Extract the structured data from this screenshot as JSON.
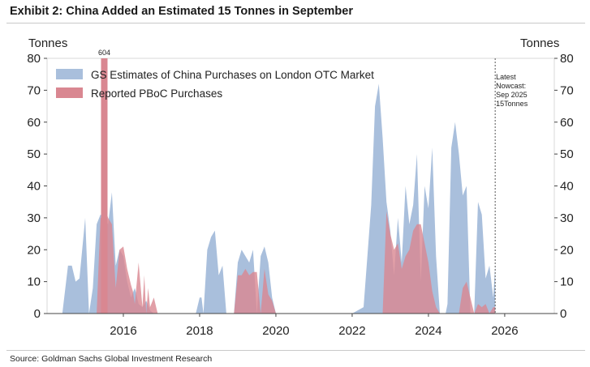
{
  "title": "Exhibit 2: China Added an Estimated 15 Tonnes in September",
  "source": "Source: Goldman Sachs Global Investment Research",
  "chart_data": {
    "type": "area",
    "ylabel_left": "Tonnes",
    "ylabel_right": "Tonnes",
    "ylim": [
      0,
      80
    ],
    "yticks": [
      0,
      10,
      20,
      30,
      40,
      50,
      60,
      70,
      80
    ],
    "xlim": [
      2014.0,
      2027.3
    ],
    "xticks": [
      2016,
      2018,
      2020,
      2022,
      2024,
      2026
    ],
    "colors": {
      "gs": "#a9bfdc",
      "pboc": "#d98791",
      "pboc_edge": "#c0505e"
    },
    "legend": {
      "placement": "top-left",
      "gs_label": "GS Estimates of China Purchases on London OTC Market",
      "pboc_label": "Reported PBoC Purchases"
    },
    "annotation": {
      "label": "604",
      "x": 2015.5,
      "note_lines": [
        "Latest",
        "Nowcast:",
        "Sep 2025",
        "15Tonnes"
      ],
      "note_x": 2025.75
    },
    "series": [
      {
        "name": "GS Estimates of China Purchases on London OTC Market",
        "x": [
          2014.4,
          2014.55,
          2014.65,
          2014.75,
          2014.85,
          2015.0,
          2015.1,
          2015.2,
          2015.3,
          2015.4,
          2015.5,
          2015.6,
          2015.7,
          2015.8,
          2015.9,
          2016.0,
          2016.1,
          2016.2,
          2016.3,
          2016.4,
          2016.5,
          2016.6,
          2016.7,
          2016.8,
          2016.9,
          2017.0,
          2017.5,
          2017.9,
          2018.0,
          2018.05,
          2018.1,
          2018.2,
          2018.3,
          2018.4,
          2018.5,
          2018.6,
          2018.7,
          2018.8,
          2018.9,
          2019.0,
          2019.1,
          2019.2,
          2019.3,
          2019.4,
          2019.5,
          2019.6,
          2019.7,
          2019.8,
          2019.9,
          2020.0,
          2020.1,
          2020.2,
          2020.5,
          2021.0,
          2021.5,
          2022.0,
          2022.3,
          2022.4,
          2022.5,
          2022.6,
          2022.7,
          2022.8,
          2022.9,
          2023.0,
          2023.1,
          2023.2,
          2023.3,
          2023.4,
          2023.5,
          2023.6,
          2023.7,
          2023.8,
          2023.9,
          2024.0,
          2024.1,
          2024.2,
          2024.3,
          2024.4,
          2024.45,
          2024.5,
          2024.6,
          2024.7,
          2024.8,
          2024.9,
          2025.0,
          2025.1,
          2025.2,
          2025.3,
          2025.4,
          2025.5,
          2025.6,
          2025.7,
          2025.75
        ],
        "values": [
          0,
          15,
          15,
          10,
          11,
          30,
          0,
          8,
          28,
          31,
          30,
          28,
          38,
          15,
          20,
          18,
          10,
          5,
          8,
          3,
          2,
          4,
          1,
          0,
          0,
          0,
          0,
          0,
          5,
          5,
          0,
          20,
          24,
          26,
          12,
          15,
          0,
          0,
          0,
          16,
          20,
          18,
          16,
          20,
          0,
          18,
          21,
          16,
          5,
          0,
          0,
          0,
          0,
          0,
          0,
          0,
          2,
          18,
          34,
          65,
          72,
          55,
          35,
          26,
          12,
          30,
          16,
          40,
          28,
          34,
          50,
          10,
          40,
          33,
          52,
          18,
          0,
          0,
          0,
          3,
          52,
          60,
          50,
          37,
          40,
          0,
          0,
          35,
          31,
          11,
          15,
          5,
          15
        ]
      },
      {
        "name": "Reported PBoC Purchases",
        "x": [
          2015.0,
          2015.3,
          2015.4,
          2015.45,
          2015.5,
          2015.55,
          2015.6,
          2015.7,
          2015.8,
          2015.9,
          2016.0,
          2016.1,
          2016.2,
          2016.25,
          2016.3,
          2016.4,
          2016.5,
          2016.55,
          2016.6,
          2016.65,
          2016.7,
          2016.8,
          2016.9,
          2017.0,
          2018.9,
          2019.0,
          2019.1,
          2019.2,
          2019.3,
          2019.4,
          2019.5,
          2019.6,
          2019.7,
          2019.8,
          2019.9,
          2020.0,
          2022.7,
          2022.75,
          2022.8,
          2022.9,
          2023.0,
          2023.1,
          2023.2,
          2023.3,
          2023.4,
          2023.5,
          2023.6,
          2023.7,
          2023.8,
          2023.9,
          2024.0,
          2024.1,
          2024.2,
          2024.3,
          2024.4,
          2024.45,
          2024.7,
          2024.8,
          2024.9,
          2025.0,
          2025.1,
          2025.2,
          2025.3,
          2025.4,
          2025.5,
          2025.6,
          2025.7,
          2025.75
        ],
        "values": [
          0,
          0,
          30,
          30,
          30,
          32,
          30,
          28,
          8,
          20,
          21,
          14,
          9,
          7,
          3,
          16,
          2,
          12,
          0,
          8,
          2,
          5,
          0,
          0,
          0,
          12,
          12,
          14,
          12,
          13,
          13,
          0,
          14,
          6,
          4,
          0,
          0,
          0,
          0,
          32,
          25,
          20,
          22,
          14,
          18,
          20,
          26,
          28,
          28,
          22,
          16,
          7,
          2,
          0,
          0,
          0,
          0,
          0,
          8,
          10,
          5,
          0,
          3,
          2,
          3,
          0,
          2,
          2
        ]
      }
    ],
    "spike": {
      "x": 2015.5,
      "value": 604
    }
  }
}
